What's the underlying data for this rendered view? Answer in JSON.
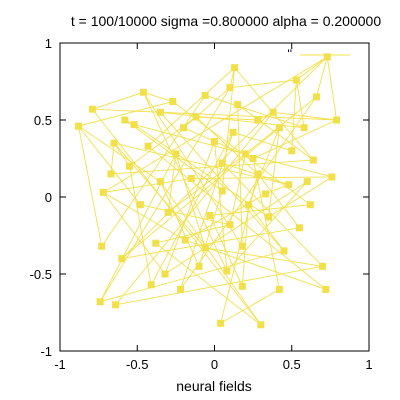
{
  "chart_data": {
    "type": "scatter",
    "title": "t = 100/10000 sigma =0.800000 alpha = 0.200000",
    "xlabel": "neural fields",
    "ylabel": "",
    "xlim": [
      -1,
      1
    ],
    "ylim": [
      -1,
      1
    ],
    "xticks": [
      -1,
      -0.5,
      0,
      0.5,
      1
    ],
    "yticks": [
      -1,
      -0.5,
      0,
      0.5,
      1
    ],
    "xtick_labels": [
      "-1",
      "-0.5",
      "0",
      "0.5",
      "1"
    ],
    "ytick_labels": [
      "-1",
      "-0.5",
      "0",
      "0.5",
      "1"
    ],
    "grid": false,
    "legend": {
      "position": "top-right",
      "label": "''"
    },
    "color": "#f2e04a",
    "series": [
      {
        "points": [
          [
            0.73,
            0.91
          ],
          [
            -0.88,
            0.46
          ],
          [
            -0.65,
            0.35
          ],
          [
            0.1,
            0.71
          ],
          [
            -0.55,
            0.2
          ],
          [
            -0.46,
            0.68
          ],
          [
            -0.72,
            0.03
          ],
          [
            0.13,
            0.84
          ],
          [
            -0.27,
            0.62
          ],
          [
            0.42,
            0.45
          ],
          [
            -0.12,
            0.52
          ],
          [
            0.2,
            0.28
          ],
          [
            0.79,
            0.5
          ],
          [
            -0.19,
            -0.28
          ],
          [
            0.35,
            -0.13
          ],
          [
            -0.35,
            0.1
          ],
          [
            0.62,
            -0.05
          ],
          [
            0.28,
            0.15
          ],
          [
            0.53,
            0.76
          ],
          [
            -0.06,
            -0.33
          ],
          [
            0.0,
            0.36
          ],
          [
            0.64,
            0.24
          ],
          [
            -0.41,
            -0.57
          ],
          [
            0.1,
            -0.18
          ],
          [
            -0.74,
            -0.68
          ],
          [
            0.25,
            0.25
          ],
          [
            0.72,
            -0.6
          ],
          [
            0.05,
            0.04
          ],
          [
            -0.3,
            -0.1
          ],
          [
            0.48,
            0.08
          ],
          [
            -0.6,
            -0.4
          ],
          [
            0.3,
            -0.83
          ],
          [
            0.18,
            -0.32
          ],
          [
            -0.52,
            0.47
          ],
          [
            0.04,
            -0.82
          ],
          [
            0.7,
            -0.45
          ],
          [
            -0.15,
            0.12
          ],
          [
            0.38,
            0.55
          ],
          [
            -0.73,
            -0.32
          ],
          [
            0.58,
            0.45
          ],
          [
            -0.03,
            -0.12
          ],
          [
            0.12,
            0.42
          ],
          [
            -0.32,
            -0.5
          ],
          [
            0.45,
            -0.35
          ],
          [
            -0.67,
            0.15
          ],
          [
            0.22,
            -0.05
          ],
          [
            -0.48,
            -0.05
          ],
          [
            0.66,
            0.65
          ],
          [
            -0.2,
            0.45
          ],
          [
            0.08,
            -0.48
          ],
          [
            -0.43,
            0.33
          ],
          [
            0.33,
            0.02
          ],
          [
            -0.1,
            -0.45
          ],
          [
            0.55,
            -0.2
          ],
          [
            -0.25,
            0.28
          ],
          [
            0.15,
            0.6
          ],
          [
            -0.38,
            -0.3
          ],
          [
            0.42,
            -0.6
          ],
          [
            -0.58,
            0.5
          ],
          [
            0.05,
            0.22
          ],
          [
            -0.79,
            0.57
          ],
          [
            0.76,
            0.13
          ],
          [
            -0.64,
            -0.7
          ],
          [
            0.28,
            0.5
          ],
          [
            -0.06,
            0.66
          ],
          [
            0.5,
            0.3
          ],
          [
            -0.35,
            0.55
          ],
          [
            0.18,
            -0.58
          ],
          [
            -0.22,
            -0.6
          ],
          [
            0.6,
            0.1
          ]
        ]
      }
    ],
    "edges": [
      [
        0,
        12
      ],
      [
        0,
        47
      ],
      [
        0,
        6
      ],
      [
        1,
        8
      ],
      [
        1,
        15
      ],
      [
        1,
        38
      ],
      [
        2,
        4
      ],
      [
        2,
        19
      ],
      [
        2,
        29
      ],
      [
        3,
        7
      ],
      [
        3,
        18
      ],
      [
        3,
        24
      ],
      [
        4,
        10
      ],
      [
        4,
        22
      ],
      [
        5,
        8
      ],
      [
        5,
        32
      ],
      [
        5,
        60
      ],
      [
        6,
        13
      ],
      [
        6,
        36
      ],
      [
        7,
        21
      ],
      [
        7,
        27
      ],
      [
        8,
        16
      ],
      [
        9,
        14
      ],
      [
        9,
        30
      ],
      [
        10,
        17
      ],
      [
        10,
        63
      ],
      [
        11,
        23
      ],
      [
        11,
        28
      ],
      [
        12,
        25
      ],
      [
        12,
        37
      ],
      [
        13,
        26
      ],
      [
        14,
        33
      ],
      [
        15,
        31
      ],
      [
        16,
        40
      ],
      [
        17,
        34
      ],
      [
        18,
        39
      ],
      [
        18,
        65
      ],
      [
        19,
        35
      ],
      [
        20,
        42
      ],
      [
        20,
        49
      ],
      [
        21,
        44
      ],
      [
        22,
        41
      ],
      [
        23,
        46
      ],
      [
        24,
        43
      ],
      [
        25,
        48
      ],
      [
        26,
        50
      ],
      [
        27,
        52
      ],
      [
        28,
        54
      ],
      [
        29,
        51
      ],
      [
        30,
        53
      ],
      [
        31,
        56
      ],
      [
        32,
        55
      ],
      [
        33,
        58
      ],
      [
        34,
        57
      ],
      [
        35,
        59
      ],
      [
        36,
        61
      ],
      [
        37,
        62
      ],
      [
        38,
        64
      ],
      [
        39,
        66
      ],
      [
        40,
        67
      ],
      [
        41,
        68
      ],
      [
        42,
        69
      ],
      [
        43,
        45
      ],
      [
        44,
        2
      ],
      [
        45,
        9
      ],
      [
        46,
        1
      ],
      [
        47,
        11
      ],
      [
        48,
        3
      ],
      [
        49,
        5
      ],
      [
        50,
        7
      ],
      [
        51,
        13
      ],
      [
        52,
        15
      ],
      [
        53,
        17
      ],
      [
        54,
        19
      ],
      [
        55,
        21
      ],
      [
        56,
        23
      ],
      [
        57,
        25
      ],
      [
        58,
        27
      ],
      [
        59,
        29
      ],
      [
        60,
        31
      ],
      [
        61,
        33
      ],
      [
        62,
        35
      ],
      [
        63,
        37
      ],
      [
        64,
        39
      ],
      [
        65,
        41
      ],
      [
        66,
        43
      ],
      [
        67,
        45
      ],
      [
        68,
        47
      ],
      [
        69,
        49
      ],
      [
        0,
        30
      ],
      [
        12,
        60
      ],
      [
        6,
        42
      ],
      [
        24,
        54
      ],
      [
        18,
        0
      ],
      [
        61,
        14
      ]
    ]
  }
}
